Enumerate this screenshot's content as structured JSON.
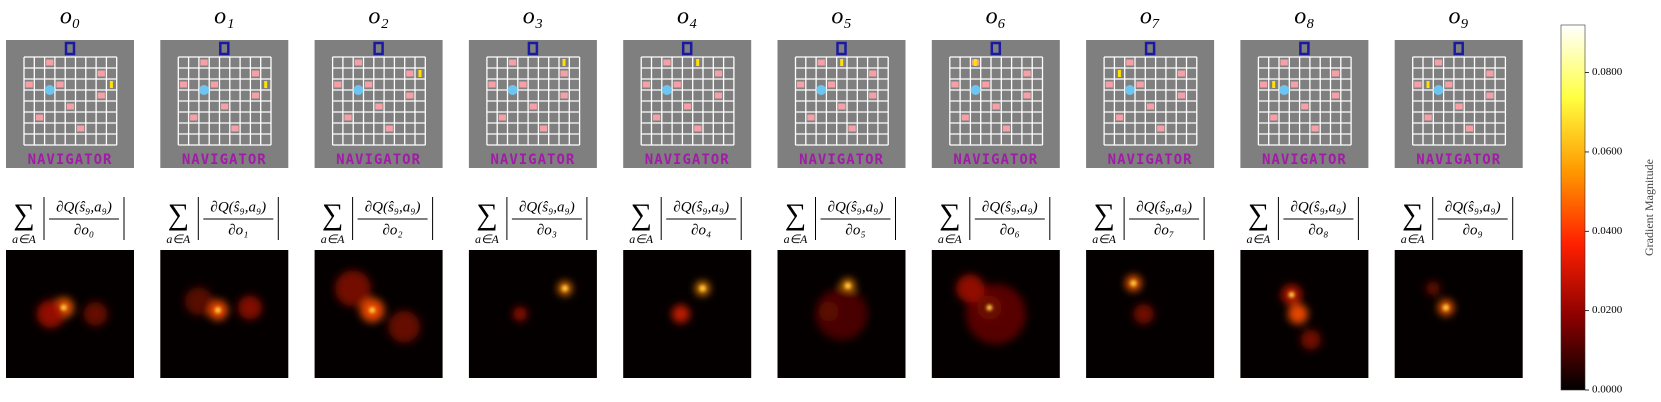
{
  "chart_data": {
    "type": "saliency-grid",
    "frames": [
      {
        "title": "o₀",
        "numerator": "∂Q(ŝ₉,a₉)",
        "denominator": "∂o₀"
      },
      {
        "title": "o₁",
        "numerator": "∂Q(ŝ₉,a₉)",
        "denominator": "∂o₁"
      },
      {
        "title": "o₂",
        "numerator": "∂Q(ŝ₉,a₉)",
        "denominator": "∂o₂"
      },
      {
        "title": "o₃",
        "numerator": "∂Q(ŝ₉,a₉)",
        "denominator": "∂o₃"
      },
      {
        "title": "o₄",
        "numerator": "∂Q(ŝ₉,a₉)",
        "denominator": "∂o₄"
      },
      {
        "title": "o₅",
        "numerator": "∂Q(ŝ₉,a₉)",
        "denominator": "∂o₅"
      },
      {
        "title": "o₆",
        "numerator": "∂Q(ŝ₉,a₉)",
        "denominator": "∂o₆"
      },
      {
        "title": "o₇",
        "numerator": "∂Q(ŝ₉,a₉)",
        "denominator": "∂o₇"
      },
      {
        "title": "o₈",
        "numerator": "∂Q(ŝ₉,a₉)",
        "denominator": "∂o₈"
      },
      {
        "title": "o₉",
        "numerator": "∂Q(ŝ₉,a₉)",
        "denominator": "∂o₉"
      }
    ],
    "sum_symbol": "∑",
    "sum_index": "a∈A",
    "game_title": "NAVIGATOR",
    "colorbar": {
      "label": "Gradient Magnitude",
      "ylim": [
        0,
        0.092
      ],
      "yticks": [
        {
          "value": 0,
          "label": "0.0000"
        },
        {
          "value": 0.02,
          "label": "0.0200"
        },
        {
          "value": 0.04,
          "label": "0.0400"
        },
        {
          "value": 0.06,
          "label": "0.0600"
        },
        {
          "value": 0.08,
          "label": "0.0800"
        }
      ],
      "colors": [
        "#000000",
        "#8b0000",
        "#ff2000",
        "#ff9900",
        "#ffff40",
        "#ffffff"
      ]
    }
  }
}
